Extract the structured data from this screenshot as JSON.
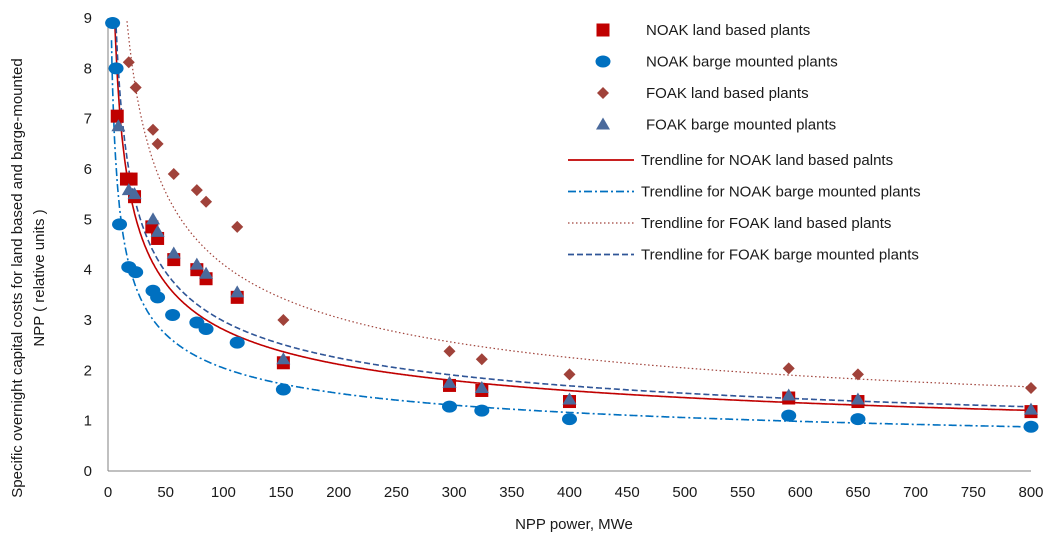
{
  "chart_data": {
    "type": "scatter",
    "xlabel": "NPP power, MWe",
    "ylabel_line1": "Specific overnight capital costs for land based and barge-mounted",
    "ylabel_line2": "NPP ( relative units )",
    "xlim": [
      0,
      800
    ],
    "ylim": [
      0,
      9
    ],
    "xticks": [
      0,
      50,
      100,
      150,
      200,
      250,
      300,
      350,
      400,
      450,
      500,
      550,
      600,
      650,
      700,
      750,
      800
    ],
    "yticks": [
      0,
      1,
      2,
      3,
      4,
      5,
      6,
      7,
      8,
      9
    ],
    "grid": false,
    "legend_position": "top-right",
    "series": [
      {
        "name": "NOAK land based plants",
        "marker": "square",
        "color": "#C00000",
        "points": [
          [
            8,
            7.05
          ],
          [
            16,
            5.8
          ],
          [
            20,
            5.8
          ],
          [
            23,
            5.45
          ],
          [
            38,
            4.85
          ],
          [
            43,
            4.62
          ],
          [
            57,
            4.2
          ],
          [
            77,
            4.0
          ],
          [
            85,
            3.82
          ],
          [
            112,
            3.45
          ],
          [
            152,
            2.15
          ],
          [
            296,
            1.7
          ],
          [
            324,
            1.6
          ],
          [
            400,
            1.38
          ],
          [
            590,
            1.45
          ],
          [
            650,
            1.38
          ],
          [
            800,
            1.18
          ]
        ]
      },
      {
        "name": "NOAK barge mounted plants",
        "marker": "circle",
        "color": "#0070C0",
        "points": [
          [
            4,
            8.9
          ],
          [
            7,
            8.0
          ],
          [
            10,
            4.9
          ],
          [
            18,
            4.05
          ],
          [
            24,
            3.95
          ],
          [
            39,
            3.58
          ],
          [
            43,
            3.45
          ],
          [
            56,
            3.1
          ],
          [
            77,
            2.95
          ],
          [
            85,
            2.82
          ],
          [
            112,
            2.55
          ],
          [
            152,
            1.62
          ],
          [
            296,
            1.28
          ],
          [
            324,
            1.2
          ],
          [
            400,
            1.03
          ],
          [
            590,
            1.1
          ],
          [
            650,
            1.03
          ],
          [
            800,
            0.88
          ]
        ]
      },
      {
        "name": "FOAK land based plants",
        "marker": "diamond",
        "color": "#A0423A",
        "points": [
          [
            18,
            8.12
          ],
          [
            24,
            7.62
          ],
          [
            39,
            6.78
          ],
          [
            43,
            6.5
          ],
          [
            57,
            5.9
          ],
          [
            77,
            5.58
          ],
          [
            85,
            5.35
          ],
          [
            112,
            4.85
          ],
          [
            152,
            3.0
          ],
          [
            296,
            2.38
          ],
          [
            324,
            2.22
          ],
          [
            400,
            1.92
          ],
          [
            590,
            2.04
          ],
          [
            650,
            1.92
          ],
          [
            800,
            1.65
          ]
        ]
      },
      {
        "name": "FOAK barge mounted plants",
        "marker": "triangle",
        "color": "#4A6A9C",
        "points": [
          [
            9,
            6.85
          ],
          [
            18,
            5.58
          ],
          [
            23,
            5.5
          ],
          [
            39,
            5.0
          ],
          [
            43,
            4.75
          ],
          [
            57,
            4.32
          ],
          [
            77,
            4.1
          ],
          [
            85,
            3.92
          ],
          [
            112,
            3.55
          ],
          [
            152,
            2.22
          ],
          [
            296,
            1.75
          ],
          [
            324,
            1.65
          ],
          [
            400,
            1.42
          ],
          [
            590,
            1.5
          ],
          [
            650,
            1.42
          ],
          [
            800,
            1.22
          ]
        ]
      }
    ],
    "trendlines": [
      {
        "name": "Trendline for NOAK land based palnts",
        "style": "solid",
        "color": "#C00000",
        "a": 18.4,
        "b": -0.408
      },
      {
        "name": "Trendline for NOAK barge mounted plants",
        "style": "dashdot",
        "color": "#0070C0",
        "a": 13.4,
        "b": -0.408
      },
      {
        "name": "Trendline for FOAK land based plants",
        "style": "dotted",
        "color": "#A0423A",
        "a": 30.0,
        "b": -0.432
      },
      {
        "name": "Trendline for FOAK barge mounted plants",
        "style": "dashed",
        "color": "#2F5597",
        "a": 19.5,
        "b": -0.408
      }
    ]
  }
}
